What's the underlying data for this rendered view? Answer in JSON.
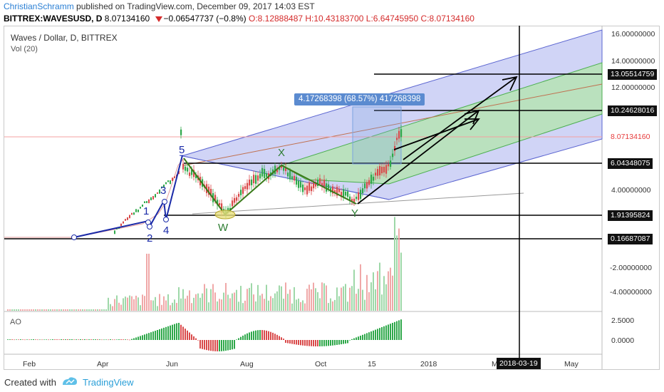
{
  "header": {
    "author": "ChristianSchramm",
    "published_text": "published on TradingView.com, December 09, 2017 14:03 EST",
    "symbol": "BITTREX:WAVESUSD, D",
    "last_price": "8.07134160",
    "change": "−0.06547737 (−0.8%)",
    "ohlc": "O:8.12888487  H:10.43183700  L:6.64745950  C:8.07134160"
  },
  "chart": {
    "title": "Waves / Dollar, D, BITTREX",
    "volume_label": "Vol (20)",
    "ao_label": "AO",
    "measure_label": "4.17268398 (68.57%) 417268398",
    "price_axis_labels": [
      "16.00000000",
      "14.00000000",
      "12.00000000",
      "4.00000000",
      "-2.00000000",
      "-4.00000000"
    ],
    "price_tags": {
      "target_top": "13.05514759",
      "target_mid": "10.24628016",
      "current": "8.07134160",
      "support_high": "6.04348075",
      "support_mid": "1.91395824",
      "support_low": "0.16687087"
    },
    "ao_axis_labels": [
      "2.5000",
      "0.0000"
    ],
    "x_axis_labels": [
      "Feb",
      "Apr",
      "Jun",
      "Aug",
      "Oct",
      "15",
      "2018",
      "M",
      "May"
    ],
    "date_tag": "2018-03-19",
    "wave_labels": {
      "w1": "1",
      "w2": "2",
      "w3": "3",
      "w4": "4",
      "w5": "5",
      "W": "W",
      "X": "X",
      "Y": "Y"
    },
    "colors": {
      "channel_outer": "#9aa0e8",
      "channel_inner": "#a8e0a0",
      "candle_up": "#2ea84a",
      "candle_down": "#d94a4a",
      "wave_blue": "#1a2aa8",
      "wave_green": "#2e7d32"
    }
  },
  "footer": {
    "created_with": "Created with",
    "brand": "TradingView"
  }
}
